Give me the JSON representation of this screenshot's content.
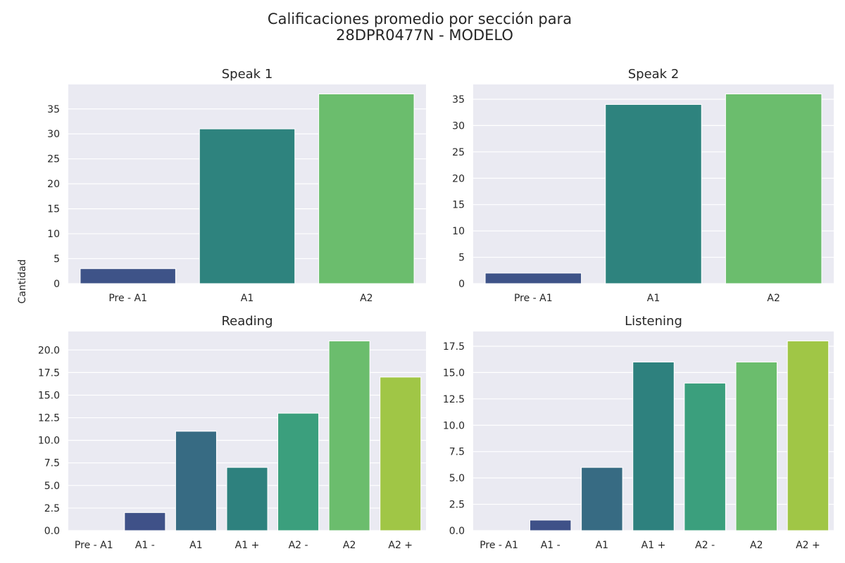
{
  "figure": {
    "title_line1": "Calificaciones promedio por sección para",
    "title_line2": "28DPR0477N - MODELO",
    "ylabel": "Cantidad",
    "background": "#eaeaf2",
    "grid_color": "#ffffff"
  },
  "chart_data": [
    {
      "type": "bar",
      "title": "Speak 1",
      "categories": [
        "Pre - A1",
        "A1",
        "A2"
      ],
      "values": [
        3,
        31,
        38
      ],
      "colors": [
        "#3e5388",
        "#2e837e",
        "#6bbd6d"
      ],
      "ylim": [
        0,
        39.9
      ],
      "yticks": [
        0,
        5,
        10,
        15,
        20,
        25,
        30,
        35
      ],
      "ytick_labels": [
        "0",
        "5",
        "10",
        "15",
        "20",
        "25",
        "30",
        "35"
      ],
      "grid": true
    },
    {
      "type": "bar",
      "title": "Speak 2",
      "categories": [
        "Pre - A1",
        "A1",
        "A2"
      ],
      "values": [
        2,
        34,
        36
      ],
      "colors": [
        "#3e5388",
        "#2e837e",
        "#6bbd6d"
      ],
      "ylim": [
        0,
        37.8
      ],
      "yticks": [
        0,
        5,
        10,
        15,
        20,
        25,
        30,
        35
      ],
      "ytick_labels": [
        "0",
        "5",
        "10",
        "15",
        "20",
        "25",
        "30",
        "35"
      ],
      "grid": true
    },
    {
      "type": "bar",
      "title": "Reading",
      "categories": [
        "Pre - A1",
        "A1 -",
        "A1",
        "A1 +",
        "A2 -",
        "A2",
        "A2 +"
      ],
      "values": [
        0,
        2,
        11,
        7,
        13,
        21,
        17
      ],
      "colors": [
        "#433f7f",
        "#3f5188",
        "#376b83",
        "#2e817e",
        "#3b9f7d",
        "#6bbd6d",
        "#a0c646"
      ],
      "ylim": [
        0,
        22.05
      ],
      "yticks": [
        0,
        2.5,
        5,
        7.5,
        10,
        12.5,
        15,
        17.5,
        20
      ],
      "ytick_labels": [
        "0.0",
        "2.5",
        "5.0",
        "7.5",
        "10.0",
        "12.5",
        "15.0",
        "17.5",
        "20.0"
      ],
      "grid": true
    },
    {
      "type": "bar",
      "title": "Listening",
      "categories": [
        "Pre - A1",
        "A1 -",
        "A1",
        "A1 +",
        "A2 -",
        "A2",
        "A2 +"
      ],
      "values": [
        0,
        1,
        6,
        16,
        14,
        16,
        18
      ],
      "colors": [
        "#433f7f",
        "#3f5188",
        "#376b83",
        "#2e817e",
        "#3b9f7d",
        "#6bbd6d",
        "#a0c646"
      ],
      "ylim": [
        0,
        18.9
      ],
      "yticks": [
        0,
        2.5,
        5,
        7.5,
        10,
        12.5,
        15,
        17.5
      ],
      "ytick_labels": [
        "0.0",
        "2.5",
        "5.0",
        "7.5",
        "10.0",
        "12.5",
        "15.0",
        "17.5"
      ],
      "grid": true
    }
  ]
}
